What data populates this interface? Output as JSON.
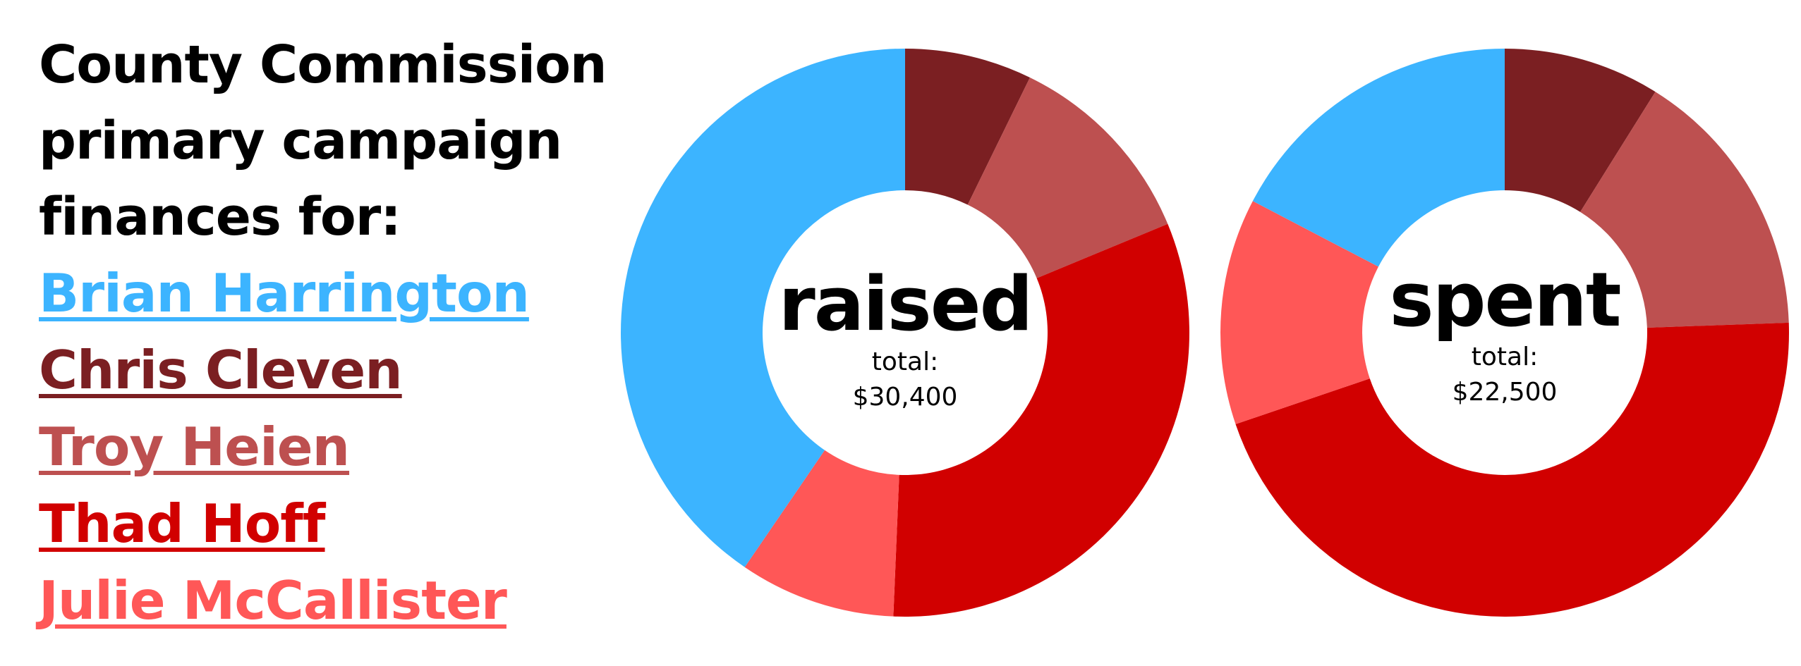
{
  "title": {
    "line1": "County Commission",
    "line2": "primary campaign",
    "line3": "finances for:"
  },
  "legend": [
    {
      "name": "Brian Harrington",
      "color": "#3cb4ff"
    },
    {
      "name": "Chris Cleven",
      "color": "#7b1f22"
    },
    {
      "name": "Troy Heien",
      "color": "#bd5050"
    },
    {
      "name": "Thad Hoff",
      "color": "#d10000"
    },
    {
      "name": "Julie McCallister",
      "color": "#ff5757"
    }
  ],
  "chart_data": [
    {
      "type": "pie",
      "title": "raised",
      "total_label": "total:",
      "total_value": "$30,400",
      "categories": [
        "Chris Cleven",
        "Troy Heien",
        "Thad Hoff",
        "Julie McCallister",
        "Brian Harrington"
      ],
      "values": [
        2200,
        3500,
        9700,
        2700,
        12300
      ],
      "colors": [
        "#7b1f22",
        "#bd5050",
        "#d10000",
        "#ff5757",
        "#3cb4ff"
      ]
    },
    {
      "type": "pie",
      "title": "spent",
      "total_label": "total:",
      "total_value": "$22,500",
      "categories": [
        "Chris Cleven",
        "Troy Heien",
        "Thad Hoff",
        "Julie McCallister",
        "Brian Harrington"
      ],
      "values": [
        2000,
        3500,
        10200,
        2900,
        3900
      ],
      "colors": [
        "#7b1f22",
        "#bd5050",
        "#d10000",
        "#ff5757",
        "#3cb4ff"
      ]
    }
  ]
}
